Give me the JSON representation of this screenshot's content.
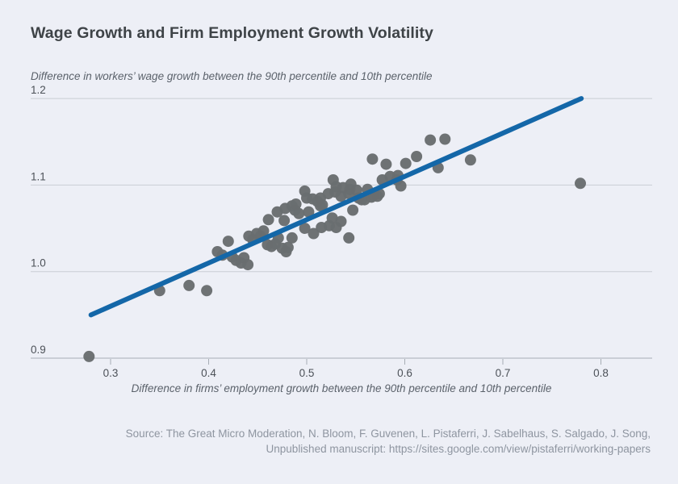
{
  "chart": {
    "title": "Wage Growth and Firm Employment Growth Volatility"
  },
  "chart_data": {
    "type": "scatter",
    "title": "Wage Growth and Firm Employment Growth Volatility",
    "y_axis_title": "Difference in workers’ wage growth between the 90th percentile and 10th percentile",
    "x_axis_title": "Difference in firms’ employment growth between the 90th percentile and 10th percentile",
    "xlim": [
      0.25,
      0.855
    ],
    "ylim": [
      0.9,
      1.2
    ],
    "x_ticks": [
      0.3,
      0.4,
      0.5,
      0.6,
      0.7,
      0.8
    ],
    "x_tick_labels": [
      "0.3",
      "0.4",
      "0.5",
      "0.6",
      "0.7",
      "0.8"
    ],
    "y_ticks": [
      0.9,
      1.0,
      1.1,
      1.2
    ],
    "y_tick_labels": [
      "0.9",
      "1.0",
      "1.1",
      "1.2"
    ],
    "grid": "horizontal-only",
    "legend": "none",
    "colors": {
      "background": "#edeff6",
      "point": "#696d70",
      "trend_line": "#1467a8",
      "gridline": "#c9cdd4",
      "axis_line": "#a7adb5"
    },
    "trendline": {
      "x": [
        0.28,
        0.78
      ],
      "y": [
        0.95,
        1.2
      ]
    },
    "points": [
      [
        0.278,
        0.902
      ],
      [
        0.35,
        0.978
      ],
      [
        0.38,
        0.984
      ],
      [
        0.398,
        0.978
      ],
      [
        0.409,
        1.023
      ],
      [
        0.414,
        1.019
      ],
      [
        0.42,
        1.035
      ],
      [
        0.424,
        1.017
      ],
      [
        0.428,
        1.013
      ],
      [
        0.433,
        1.01
      ],
      [
        0.436,
        1.016
      ],
      [
        0.44,
        1.008
      ],
      [
        0.441,
        1.041
      ],
      [
        0.445,
        1.037
      ],
      [
        0.449,
        1.044
      ],
      [
        0.453,
        1.041
      ],
      [
        0.456,
        1.047
      ],
      [
        0.46,
        1.031
      ],
      [
        0.461,
        1.06
      ],
      [
        0.464,
        1.029
      ],
      [
        0.468,
        1.032
      ],
      [
        0.47,
        1.069
      ],
      [
        0.471,
        1.039
      ],
      [
        0.475,
        1.027
      ],
      [
        0.477,
        1.059
      ],
      [
        0.478,
        1.073
      ],
      [
        0.479,
        1.023
      ],
      [
        0.481,
        1.028
      ],
      [
        0.485,
        1.039
      ],
      [
        0.485,
        1.076
      ],
      [
        0.488,
        1.071
      ],
      [
        0.489,
        1.078
      ],
      [
        0.492,
        1.067
      ],
      [
        0.498,
        1.05
      ],
      [
        0.498,
        1.093
      ],
      [
        0.5,
        1.085
      ],
      [
        0.502,
        1.069
      ],
      [
        0.506,
        1.084
      ],
      [
        0.507,
        1.044
      ],
      [
        0.511,
        1.081
      ],
      [
        0.514,
        1.076
      ],
      [
        0.514,
        1.085
      ],
      [
        0.515,
        1.051
      ],
      [
        0.516,
        1.077
      ],
      [
        0.522,
        1.09
      ],
      [
        0.523,
        1.053
      ],
      [
        0.526,
        1.062
      ],
      [
        0.527,
        1.106
      ],
      [
        0.529,
        1.092
      ],
      [
        0.53,
        1.051
      ],
      [
        0.53,
        1.098
      ],
      [
        0.535,
        1.058
      ],
      [
        0.535,
        1.087
      ],
      [
        0.537,
        1.097
      ],
      [
        0.543,
        1.039
      ],
      [
        0.543,
        1.09
      ],
      [
        0.544,
        1.095
      ],
      [
        0.545,
        1.101
      ],
      [
        0.547,
        1.071
      ],
      [
        0.551,
        1.094
      ],
      [
        0.553,
        1.085
      ],
      [
        0.556,
        1.083
      ],
      [
        0.559,
        1.083
      ],
      [
        0.562,
        1.095
      ],
      [
        0.566,
        1.086
      ],
      [
        0.567,
        1.13
      ],
      [
        0.568,
        1.088
      ],
      [
        0.572,
        1.087
      ],
      [
        0.574,
        1.09
      ],
      [
        0.577,
        1.106
      ],
      [
        0.581,
        1.124
      ],
      [
        0.585,
        1.11
      ],
      [
        0.592,
        1.106
      ],
      [
        0.593,
        1.111
      ],
      [
        0.596,
        1.099
      ],
      [
        0.601,
        1.125
      ],
      [
        0.612,
        1.133
      ],
      [
        0.626,
        1.152
      ],
      [
        0.634,
        1.12
      ],
      [
        0.641,
        1.153
      ],
      [
        0.667,
        1.129
      ],
      [
        0.779,
        1.102
      ]
    ]
  },
  "footer": {
    "line1": "Source: The Great Micro Moderation, N. Bloom, F. Guvenen, L. Pistaferri, J. Sabelhaus, S. Salgado, J. Song,",
    "line2": "Unpublished manuscript: https://sites.google.com/view/pistaferri/working-papers"
  }
}
